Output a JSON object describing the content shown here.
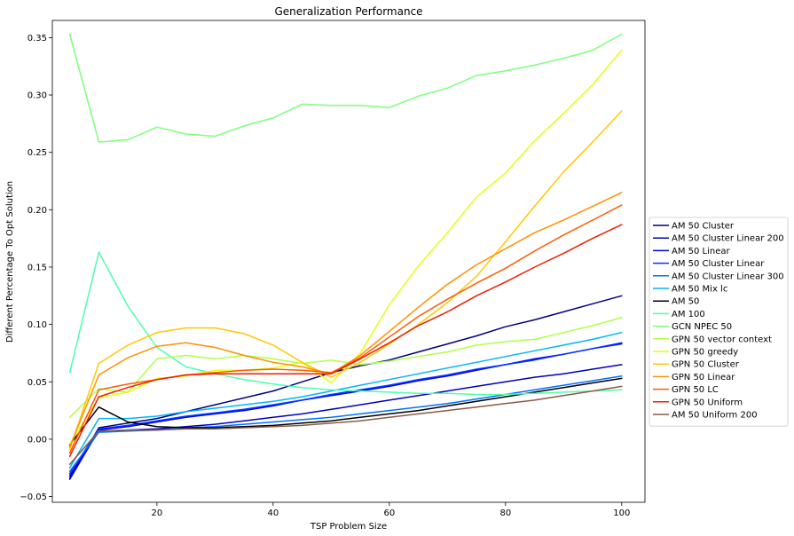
{
  "chart_data": {
    "type": "line",
    "title": "Generalization Performance",
    "xlabel": "TSP Problem Size",
    "ylabel": "Different Percentage To Opt Solution",
    "xlim": [
      2,
      104
    ],
    "ylim": [
      -0.055,
      0.365
    ],
    "x_ticks": [
      20,
      40,
      60,
      80,
      100
    ],
    "x_tick_labels": [
      "20",
      "40",
      "60",
      "80",
      "100"
    ],
    "y_ticks": [
      -0.05,
      0.0,
      0.05,
      0.1,
      0.15,
      0.2,
      0.25,
      0.3,
      0.35
    ],
    "y_tick_labels": [
      "−0.05",
      "0.00",
      "0.05",
      "0.10",
      "0.15",
      "0.20",
      "0.25",
      "0.30",
      "0.35"
    ],
    "grid": false,
    "legend_position": "right",
    "x": [
      5,
      10,
      15,
      20,
      25,
      30,
      35,
      40,
      45,
      50,
      55,
      60,
      65,
      70,
      75,
      80,
      85,
      90,
      95,
      100
    ],
    "series": [
      {
        "name": "AM 50 Cluster",
        "color": "#00007f",
        "values": [
          -0.034,
          0.01,
          0.014,
          0.018,
          0.024,
          0.03,
          0.036,
          0.042,
          0.05,
          0.058,
          0.064,
          0.069,
          0.076,
          0.083,
          0.09,
          0.098,
          0.104,
          0.111,
          0.118,
          0.125
        ]
      },
      {
        "name": "AM 50 Cluster Linear 200",
        "color": "#0000bb",
        "values": [
          -0.032,
          0.007,
          0.008,
          0.009,
          0.011,
          0.013,
          0.016,
          0.019,
          0.022,
          0.026,
          0.03,
          0.034,
          0.038,
          0.042,
          0.046,
          0.05,
          0.054,
          0.057,
          0.061,
          0.065
        ]
      },
      {
        "name": "AM 50 Linear",
        "color": "#0000f1",
        "values": [
          -0.035,
          0.008,
          0.011,
          0.015,
          0.019,
          0.022,
          0.025,
          0.029,
          0.034,
          0.038,
          0.042,
          0.046,
          0.051,
          0.055,
          0.06,
          0.065,
          0.07,
          0.074,
          0.079,
          0.084
        ]
      },
      {
        "name": "AM 50 Cluster Linear",
        "color": "#0034ff",
        "values": [
          -0.03,
          0.009,
          0.012,
          0.016,
          0.02,
          0.023,
          0.026,
          0.03,
          0.034,
          0.039,
          0.043,
          0.047,
          0.052,
          0.056,
          0.061,
          0.065,
          0.069,
          0.074,
          0.079,
          0.083
        ]
      },
      {
        "name": "AM 50 Cluster Linear 300",
        "color": "#0070ff",
        "values": [
          -0.028,
          0.006,
          0.007,
          0.008,
          0.01,
          0.011,
          0.013,
          0.015,
          0.017,
          0.019,
          0.022,
          0.025,
          0.028,
          0.031,
          0.035,
          0.039,
          0.043,
          0.047,
          0.051,
          0.055
        ]
      },
      {
        "name": "AM 50 Mix lc",
        "color": "#00b4ff",
        "values": [
          -0.025,
          0.018,
          0.018,
          0.02,
          0.024,
          0.027,
          0.03,
          0.033,
          0.037,
          0.042,
          0.047,
          0.052,
          0.057,
          0.062,
          0.067,
          0.072,
          0.077,
          0.082,
          0.087,
          0.093
        ]
      },
      {
        "name": "AM 50",
        "color": "#000000",
        "values": [
          -0.005,
          0.028,
          0.015,
          0.011,
          0.01,
          0.01,
          0.011,
          0.012,
          0.014,
          0.016,
          0.019,
          0.022,
          0.025,
          0.029,
          0.033,
          0.037,
          0.041,
          0.045,
          0.049,
          0.053
        ]
      },
      {
        "name": "AM 100",
        "color": "#4cffaa",
        "values": [
          0.058,
          0.163,
          0.116,
          0.08,
          0.063,
          0.057,
          0.052,
          0.048,
          0.045,
          0.043,
          0.042,
          0.041,
          0.04,
          0.04,
          0.039,
          0.039,
          0.04,
          0.041,
          0.042,
          0.043
        ]
      },
      {
        "name": "GCN NPEC 50",
        "color": "#7dff7a",
        "values": [
          0.353,
          0.259,
          0.261,
          0.272,
          0.266,
          0.264,
          0.273,
          0.28,
          0.292,
          0.291,
          0.291,
          0.289,
          0.299,
          0.306,
          0.317,
          0.321,
          0.326,
          0.332,
          0.339,
          0.353
        ]
      },
      {
        "name": "GPN 50 vector context",
        "color": "#b0ff46",
        "values": [
          0.019,
          0.044,
          0.041,
          0.07,
          0.073,
          0.07,
          0.073,
          0.07,
          0.066,
          0.069,
          0.065,
          0.068,
          0.072,
          0.076,
          0.082,
          0.085,
          0.087,
          0.093,
          0.099,
          0.106
        ]
      },
      {
        "name": "GPN 50 greedy",
        "color": "#e4ff12",
        "values": [
          -0.004,
          0.036,
          0.041,
          0.053,
          0.055,
          0.06,
          0.06,
          0.062,
          0.067,
          0.049,
          0.075,
          0.117,
          0.151,
          0.18,
          0.211,
          0.232,
          0.26,
          0.284,
          0.309,
          0.339
        ]
      },
      {
        "name": "GPN 50 Cluster",
        "color": "#ffc800",
        "values": [
          -0.009,
          0.066,
          0.082,
          0.093,
          0.097,
          0.097,
          0.092,
          0.082,
          0.067,
          0.054,
          0.067,
          0.083,
          0.1,
          0.119,
          0.142,
          0.172,
          0.203,
          0.233,
          0.259,
          0.286
        ]
      },
      {
        "name": "GPN 50 Linear",
        "color": "#ff9100",
        "values": [
          -0.007,
          0.056,
          0.071,
          0.081,
          0.084,
          0.08,
          0.073,
          0.067,
          0.063,
          0.057,
          0.073,
          0.094,
          0.115,
          0.135,
          0.152,
          0.166,
          0.18,
          0.191,
          0.203,
          0.215
        ]
      },
      {
        "name": "GPN 50 LC",
        "color": "#ff5a00",
        "values": [
          -0.012,
          0.043,
          0.048,
          0.052,
          0.056,
          0.058,
          0.06,
          0.061,
          0.06,
          0.058,
          0.071,
          0.089,
          0.107,
          0.122,
          0.136,
          0.149,
          0.164,
          0.178,
          0.191,
          0.204
        ]
      },
      {
        "name": "GPN 50 Uniform",
        "color": "#f01e00",
        "values": [
          -0.015,
          0.037,
          0.045,
          0.052,
          0.056,
          0.057,
          0.057,
          0.057,
          0.057,
          0.057,
          0.07,
          0.084,
          0.099,
          0.111,
          0.125,
          0.137,
          0.15,
          0.162,
          0.175,
          0.187
        ]
      },
      {
        "name": "AM 50 Uniform 200",
        "color": "#8c5a46",
        "values": [
          -0.022,
          0.007,
          0.008,
          0.008,
          0.009,
          0.009,
          0.01,
          0.011,
          0.012,
          0.014,
          0.016,
          0.019,
          0.022,
          0.025,
          0.028,
          0.031,
          0.034,
          0.038,
          0.042,
          0.046
        ]
      }
    ]
  }
}
